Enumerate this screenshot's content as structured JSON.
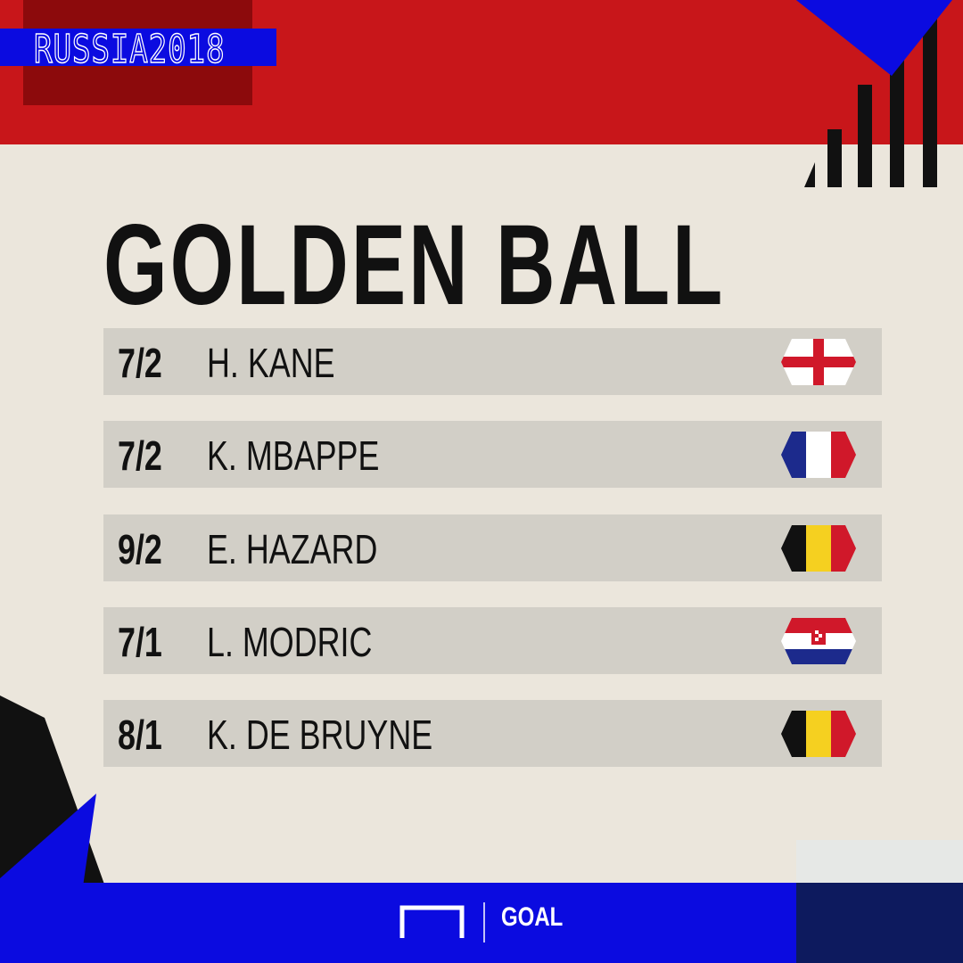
{
  "badge": "RUSSIA2018",
  "title": "GOLDEN BALL",
  "rows": [
    {
      "odds": "7/2",
      "name": "H. KANE",
      "flag": "england-flag-icon"
    },
    {
      "odds": "7/2",
      "name": "K. MBAPPE",
      "flag": "france-flag-icon"
    },
    {
      "odds": "9/2",
      "name": "E. HAZARD",
      "flag": "belgium-flag-icon"
    },
    {
      "odds": "7/1",
      "name": "L. MODRIC",
      "flag": "croatia-flag-icon"
    },
    {
      "odds": "8/1",
      "name": "K. DE BRUYNE",
      "flag": "belgium-flag-icon"
    }
  ],
  "brand": "GOAL",
  "colors": {
    "red": "#c8161a",
    "blue": "#0b0be0",
    "navy": "#0d1a5e",
    "paper": "#ebe6dc"
  }
}
